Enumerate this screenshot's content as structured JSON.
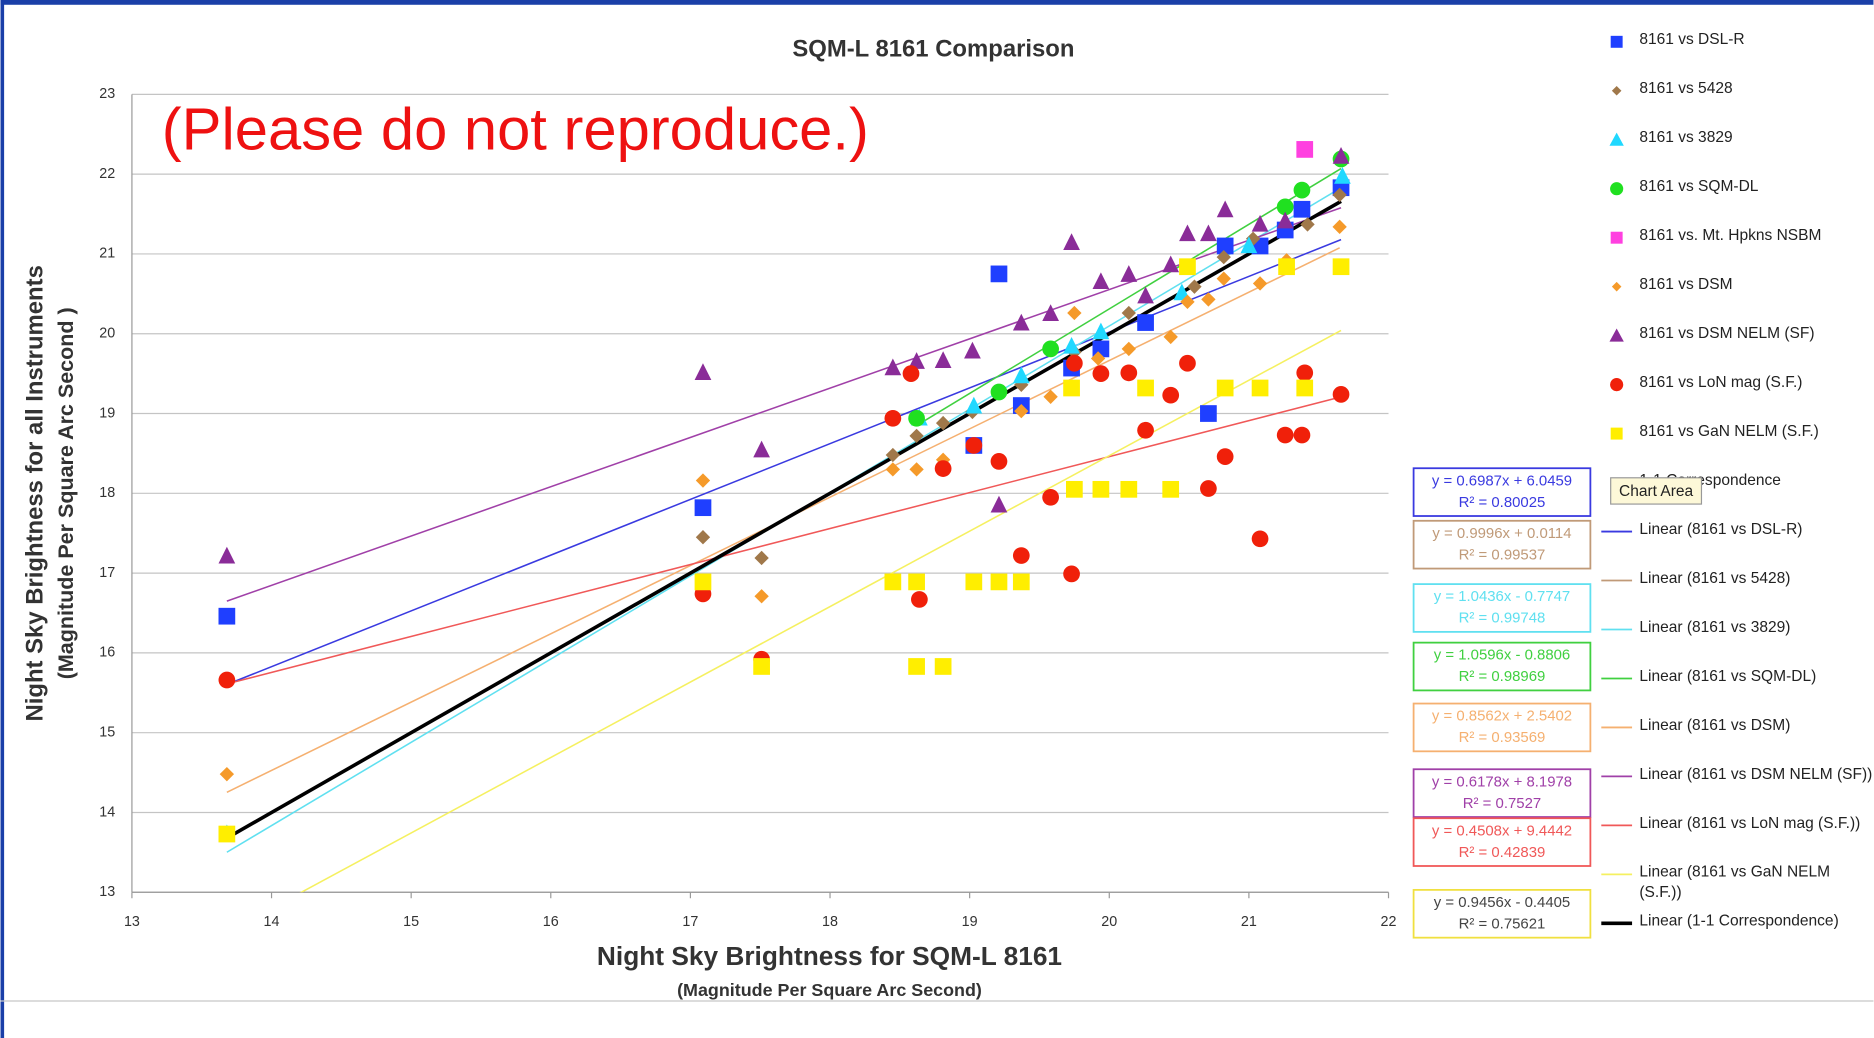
{
  "chart_data": {
    "type": "scatter",
    "title": "SQM-L 8161 Comparison",
    "annotation": "(Please do not reproduce.)",
    "tooltip": "Chart Area",
    "x_label": "Night Sky Brightness for SQM-L 8161",
    "x_sublabel": "(Magnitude Per Square Arc Second)",
    "y_label": "Night Sky Brightness for all Instruments",
    "y_sublabel": "(Magnitude Per Square Arc Second )",
    "xlim": [
      13,
      22
    ],
    "xticks": [
      13,
      14,
      15,
      16,
      17,
      18,
      19,
      20,
      21,
      22
    ],
    "ylim": [
      13,
      23
    ],
    "yticks": [
      13,
      14,
      15,
      16,
      17,
      18,
      19,
      20,
      21,
      22,
      23
    ],
    "grid": true,
    "legend": "right",
    "series": [
      {
        "name": "8161 vs DSL-R",
        "color": "#1f3fff",
        "marker": "square",
        "x": [
          13.68,
          17.09,
          19.21,
          19.03,
          19.37,
          19.73,
          19.94,
          20.26,
          20.71,
          20.83,
          21.08,
          21.26,
          21.38,
          21.66
        ],
        "values": [
          16.46,
          17.82,
          20.75,
          18.6,
          19.1,
          19.57,
          19.81,
          20.14,
          19.0,
          21.1,
          21.1,
          21.3,
          21.56,
          21.83
        ]
      },
      {
        "name": "8161 vs 5428",
        "color": "#a0784a",
        "marker": "diamond",
        "x": [
          17.09,
          17.51,
          18.45,
          18.62,
          18.81,
          19.02,
          19.37,
          19.75,
          20.14,
          20.61,
          20.82,
          21.03,
          21.42,
          21.65
        ],
        "values": [
          17.45,
          17.19,
          18.48,
          18.72,
          18.88,
          19.02,
          19.36,
          19.77,
          20.26,
          20.59,
          20.96,
          21.19,
          21.37,
          21.74
        ]
      },
      {
        "name": "8161 vs 3829",
        "color": "#20d8ff",
        "marker": "triangle",
        "x": [
          13.68,
          18.64,
          19.03,
          19.37,
          19.73,
          19.94,
          20.52,
          21.0,
          21.67
        ],
        "values": [
          13.73,
          18.94,
          19.09,
          19.47,
          19.84,
          20.02,
          20.51,
          21.1,
          21.97
        ]
      },
      {
        "name": "8161 vs SQM-DL",
        "color": "#20e020",
        "marker": "circle",
        "x": [
          18.62,
          19.21,
          19.58,
          21.26,
          21.38,
          21.66
        ],
        "values": [
          18.94,
          19.27,
          19.81,
          21.59,
          21.8,
          22.19
        ]
      },
      {
        "name": "8161 vs. Mt. Hpkns NSBM",
        "color": "#ff40e0",
        "marker": "square",
        "x": [
          21.4
        ],
        "values": [
          22.31
        ]
      },
      {
        "name": "8161 vs DSM",
        "color": "#f59a2a",
        "marker": "diamond",
        "x": [
          13.68,
          17.09,
          17.51,
          18.45,
          18.62,
          18.81,
          19.37,
          19.58,
          19.75,
          19.92,
          20.14,
          20.44,
          20.56,
          20.71,
          20.82,
          21.08,
          21.27,
          21.65
        ],
        "values": [
          14.48,
          18.16,
          16.71,
          18.3,
          18.3,
          18.42,
          19.03,
          19.21,
          20.26,
          19.69,
          19.81,
          19.96,
          20.4,
          20.43,
          20.69,
          20.63,
          20.92,
          21.34
        ]
      },
      {
        "name": "8161 vs DSM NELM (SF)",
        "color": "#8a2c98",
        "marker": "triangle",
        "x": [
          13.68,
          17.09,
          17.51,
          18.45,
          18.62,
          18.81,
          19.02,
          19.21,
          19.37,
          19.58,
          19.73,
          19.94,
          20.14,
          20.26,
          20.44,
          20.56,
          20.71,
          20.83,
          21.08,
          21.26,
          21.66
        ],
        "values": [
          17.21,
          19.51,
          18.54,
          19.57,
          19.65,
          19.66,
          19.78,
          17.85,
          20.13,
          20.25,
          21.14,
          20.65,
          20.74,
          20.47,
          20.86,
          21.25,
          21.25,
          21.55,
          21.37,
          21.41,
          22.22
        ]
      },
      {
        "name": "8161 vs LoN mag (S.F.)",
        "color": "#f0200a",
        "marker": "circle",
        "x": [
          13.68,
          17.09,
          17.51,
          18.45,
          18.58,
          18.64,
          18.81,
          19.03,
          19.21,
          19.37,
          19.58,
          19.73,
          19.75,
          19.94,
          20.14,
          20.26,
          20.44,
          20.56,
          20.71,
          20.83,
          21.08,
          21.26,
          21.38,
          21.4,
          21.66
        ],
        "values": [
          15.66,
          16.74,
          15.92,
          18.94,
          19.5,
          16.67,
          18.31,
          18.6,
          18.4,
          17.22,
          17.95,
          16.99,
          19.63,
          19.5,
          19.51,
          18.79,
          19.23,
          19.63,
          18.06,
          18.46,
          17.43,
          18.73,
          18.73,
          19.51,
          19.24
        ]
      },
      {
        "name": "8161 vs GaN NELM (S.F.)",
        "color": "#ffee00",
        "marker": "square",
        "x": [
          13.68,
          17.09,
          17.51,
          18.45,
          18.62,
          18.62,
          18.81,
          19.03,
          19.21,
          19.37,
          19.73,
          19.75,
          19.94,
          20.14,
          20.26,
          20.44,
          20.56,
          20.83,
          21.08,
          21.27,
          21.4,
          21.66
        ],
        "values": [
          13.73,
          16.89,
          15.83,
          16.89,
          16.89,
          15.83,
          15.83,
          16.89,
          16.89,
          16.89,
          19.32,
          18.05,
          18.05,
          18.05,
          19.32,
          18.05,
          20.84,
          19.32,
          19.32,
          20.84,
          19.32,
          20.84
        ]
      },
      {
        "name": "1-1 Correspondence",
        "color": "#000000",
        "marker": "none",
        "x": [
          13.68,
          21.66
        ],
        "values": [
          13.68,
          21.66
        ]
      }
    ],
    "trendlines": [
      {
        "name": "Linear (8161 vs DSL-R)",
        "series": 0,
        "color": "#3a3ae0",
        "slope": 0.6987,
        "intercept": 6.0459,
        "equation": "y = 0.6987x + 6.0459",
        "r2": "R² = 0.80025"
      },
      {
        "name": "Linear (8161 vs 5428)",
        "series": 1,
        "color": "#c09a78",
        "slope": 0.9996,
        "intercept": 0.0114,
        "equation": "y = 0.9996x + 0.0114",
        "r2": "R² = 0.99537"
      },
      {
        "name": "Linear (8161 vs 3829)",
        "series": 2,
        "color": "#60e0f0",
        "slope": 1.0436,
        "intercept": -0.7747,
        "equation": "y = 1.0436x - 0.7747",
        "r2": "R² = 0.99748"
      },
      {
        "name": "Linear (8161 vs SQM-DL)",
        "series": 3,
        "color": "#40d040",
        "slope": 1.0596,
        "intercept": -0.8806,
        "equation": "y = 1.0596x - 0.8806",
        "r2": "R² = 0.98969"
      },
      {
        "name": "Linear (8161 vs DSM)",
        "series": 5,
        "color": "#f5b070",
        "slope": 0.8562,
        "intercept": 2.5402,
        "equation": "y = 0.8562x + 2.5402",
        "r2": "R² = 0.93569"
      },
      {
        "name": "Linear (8161 vs DSM NELM (SF))",
        "series": 6,
        "color": "#a040a8",
        "slope": 0.6178,
        "intercept": 8.1978,
        "equation": "y = 0.6178x + 8.1978",
        "r2": "R² = 0.7527"
      },
      {
        "name": "Linear (8161 vs LoN mag (S.F.))",
        "series": 7,
        "color": "#f05858",
        "slope": 0.4508,
        "intercept": 9.4442,
        "equation": "y = 0.4508x + 9.4442",
        "r2": "R² = 0.42839"
      },
      {
        "name": "Linear (8161 vs GaN NELM (S.F.))",
        "series": 8,
        "color": "#f5f060",
        "slope": 0.9456,
        "intercept": -0.4405,
        "equation": "y = 0.9456x - 0.4405",
        "r2": "R² = 0.75621"
      },
      {
        "name": "Linear (1-1 Correspondence)",
        "series": 9,
        "color": "#000000",
        "slope": 1,
        "intercept": 0
      }
    ]
  }
}
